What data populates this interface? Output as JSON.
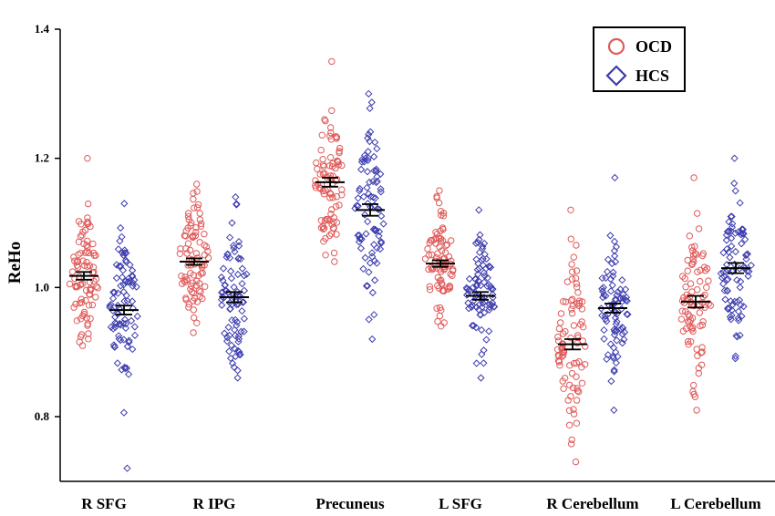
{
  "chart_data": {
    "type": "scatter",
    "title": "",
    "xlabel": "",
    "ylabel": "ReHo",
    "ylim": [
      0.7,
      1.4
    ],
    "yticks": [
      "0.8",
      "1.0",
      "1.2",
      "1.4"
    ],
    "categories": [
      "R SFG",
      "R IPG",
      "Precuneus",
      "L SFG",
      "R Cerebellum",
      "L Cerebellum"
    ],
    "legend_position": "top-right",
    "series": [
      {
        "name": "OCD",
        "marker": "circle",
        "color": "#e05a5a",
        "means": [
          1.018,
          1.04,
          1.163,
          1.037,
          0.912,
          0.978
        ],
        "sem": [
          0.006,
          0.005,
          0.007,
          0.005,
          0.008,
          0.009
        ],
        "ranges": [
          [
            0.91,
            1.2
          ],
          [
            0.93,
            1.16
          ],
          [
            1.04,
            1.35
          ],
          [
            0.94,
            1.15
          ],
          [
            0.73,
            1.12
          ],
          [
            0.81,
            1.17
          ]
        ],
        "spread": [
          0.055,
          0.05,
          0.065,
          0.045,
          0.07,
          0.07
        ]
      },
      {
        "name": "HCS",
        "marker": "diamond",
        "color": "#3c3caf",
        "means": [
          0.965,
          0.985,
          1.12,
          0.987,
          0.968,
          1.03
        ],
        "sem": [
          0.007,
          0.008,
          0.009,
          0.006,
          0.007,
          0.008
        ],
        "ranges": [
          [
            0.72,
            1.13
          ],
          [
            0.86,
            1.14
          ],
          [
            0.92,
            1.3
          ],
          [
            0.86,
            1.12
          ],
          [
            0.81,
            1.17
          ],
          [
            0.89,
            1.2
          ]
        ],
        "spread": [
          0.06,
          0.06,
          0.07,
          0.05,
          0.06,
          0.055
        ]
      }
    ]
  }
}
